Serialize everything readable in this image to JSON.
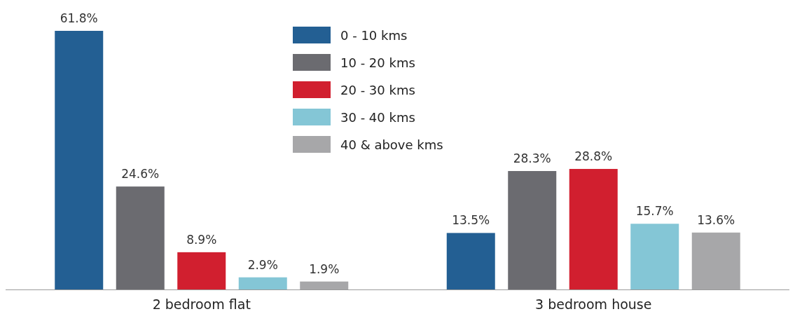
{
  "chart_data": {
    "type": "bar",
    "categories": [
      "2 bedroom flat",
      "3 bedroom house"
    ],
    "series": [
      {
        "name": "0 - 10 kms",
        "color": "#235f93",
        "values": [
          61.8,
          13.5
        ],
        "value_labels": [
          "61.8%",
          "13.5%"
        ]
      },
      {
        "name": "10 - 20 kms",
        "color": "#6b6b70",
        "values": [
          24.6,
          28.3
        ],
        "value_labels": [
          "24.6%",
          "28.3%"
        ]
      },
      {
        "name": "20 - 30 kms",
        "color": "#d11f2f",
        "values": [
          8.9,
          28.8
        ],
        "value_labels": [
          "8.9%",
          "28.8%"
        ]
      },
      {
        "name": "30 - 40 kms",
        "color": "#84c6d6",
        "values": [
          2.9,
          15.7
        ],
        "value_labels": [
          "2.9%",
          "15.7%"
        ]
      },
      {
        "name": "40 & above kms",
        "color": "#a7a7a9",
        "values": [
          1.9,
          13.6
        ],
        "value_labels": [
          "1.9%",
          "13.6%"
        ]
      }
    ],
    "legend": "top"
  }
}
